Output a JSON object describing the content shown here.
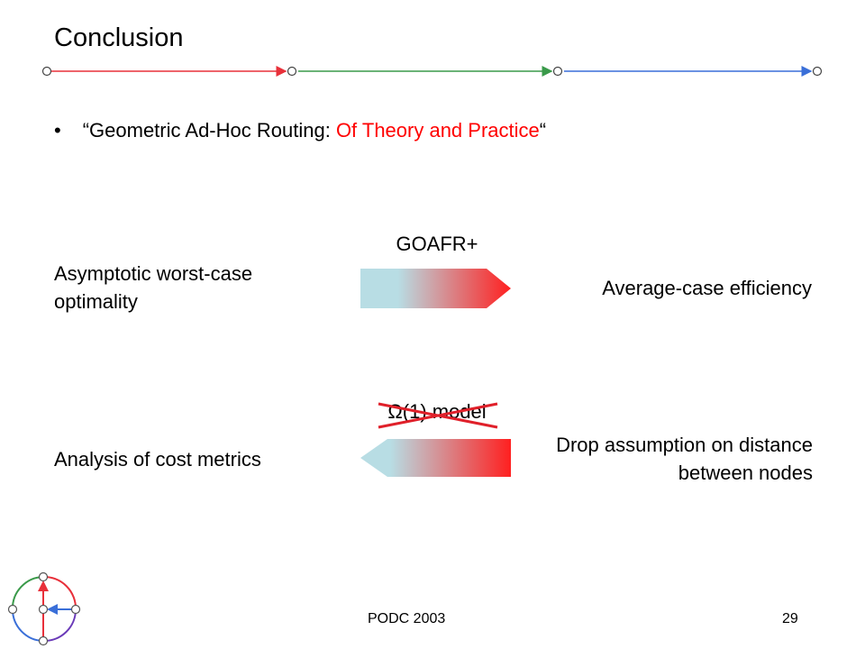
{
  "slide": {
    "title": "Conclusion",
    "bullet": {
      "marker": "•",
      "open_quote": "“Geometric Ad-Hoc Routing: ",
      "highlight": "Of Theory and Practice",
      "close_quote": "“"
    },
    "row1": {
      "left": "Asymptotic worst-case optimality",
      "arrow_label": "GOAFR+",
      "right": "Average-case efficiency"
    },
    "row2": {
      "left": "Analysis of cost metrics",
      "arrow_label": "Ω(1) model",
      "right": "Drop assumption on distance between nodes"
    },
    "footer": {
      "conference": "PODC 2003",
      "page_number": "29"
    }
  },
  "colors": {
    "segment_red": "#e8303a",
    "segment_green": "#3a9a4a",
    "segment_blue": "#3a6fd8",
    "highlight": "#ff0000",
    "gradient_start": "#b8dde4",
    "gradient_end": "#ff2020",
    "strike": "#e0202a"
  },
  "icons": {
    "logo": "routing-graph-logo-icon"
  }
}
